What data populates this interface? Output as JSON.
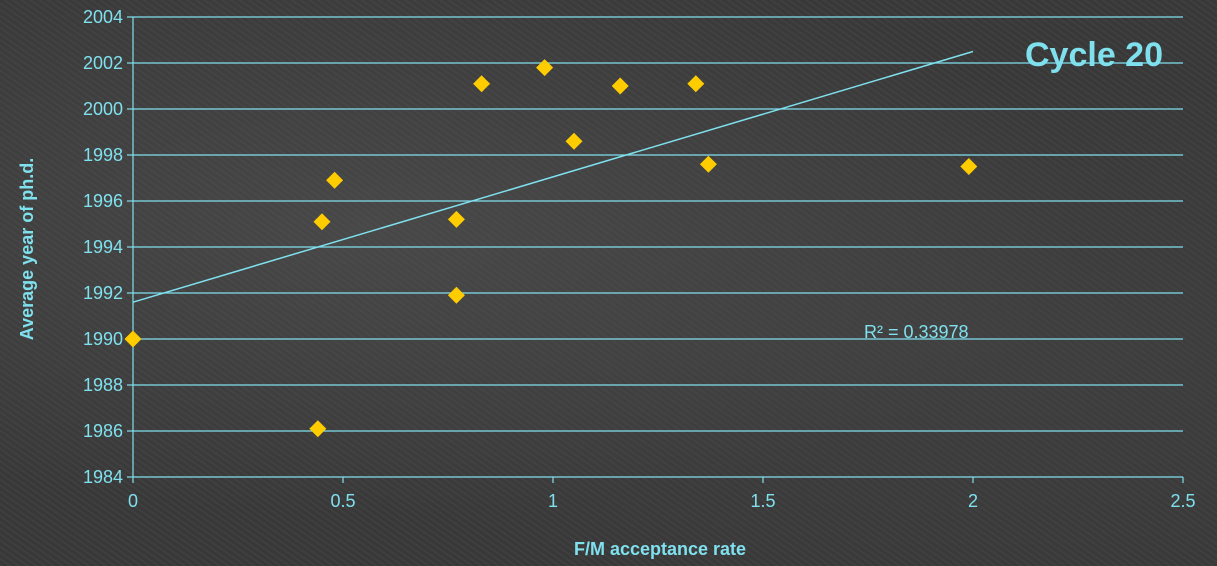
{
  "chart_data": {
    "type": "scatter",
    "title": "Cycle 20",
    "xlabel": "F/M acceptance rate",
    "ylabel": "Average year of ph.d.",
    "xlim": [
      0,
      2.5
    ],
    "ylim": [
      1984,
      2004
    ],
    "xticks": [
      0,
      0.5,
      1,
      1.5,
      2,
      2.5
    ],
    "xtick_labels": [
      "0",
      "0.5",
      "1",
      "1.5",
      "2",
      "2.5"
    ],
    "yticks": [
      1984,
      1986,
      1988,
      1990,
      1992,
      1994,
      1996,
      1998,
      2000,
      2002,
      2004
    ],
    "grid": "horizontal",
    "points": [
      {
        "x": 0.0,
        "y": 1990.0
      },
      {
        "x": 0.44,
        "y": 1986.1
      },
      {
        "x": 0.45,
        "y": 1995.1
      },
      {
        "x": 0.48,
        "y": 1996.9
      },
      {
        "x": 0.77,
        "y": 1991.9
      },
      {
        "x": 0.77,
        "y": 1995.2
      },
      {
        "x": 0.83,
        "y": 2001.1
      },
      {
        "x": 0.98,
        "y": 2001.8
      },
      {
        "x": 1.05,
        "y": 1998.6
      },
      {
        "x": 1.16,
        "y": 2001.0
      },
      {
        "x": 1.34,
        "y": 2001.1
      },
      {
        "x": 1.37,
        "y": 1997.6
      },
      {
        "x": 1.99,
        "y": 1997.5
      }
    ],
    "trendline": {
      "x": [
        0,
        2
      ],
      "y": [
        1991.6,
        2002.5
      ]
    },
    "r2_label": "R² = 0.33978",
    "colors": {
      "marker": "#ffcc00",
      "line": "#7fe0ee",
      "grid": "#7fe0ee",
      "text": "#7fe0ee"
    }
  }
}
